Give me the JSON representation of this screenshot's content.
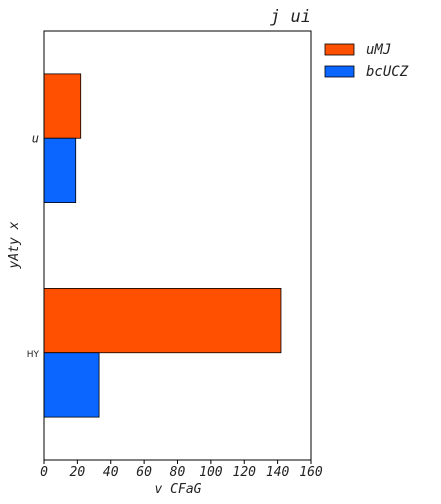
{
  "chart_data": {
    "type": "bar",
    "orientation": "horizontal",
    "title": "j  ui",
    "xlabel": "v  CFaG",
    "ylabel": "yAty x",
    "categories": [
      "u",
      "HY"
    ],
    "series": [
      {
        "name": "uMJ",
        "values": [
          22,
          142
        ],
        "color": "#ff4f00"
      },
      {
        "name": "bcUCZ",
        "values": [
          19,
          33
        ],
        "color": "#0a66ff"
      }
    ],
    "xlim": [
      0,
      160
    ],
    "xticks": [
      0,
      20,
      40,
      60,
      80,
      100,
      120,
      140,
      160
    ],
    "grid": false,
    "legend_position": "right"
  }
}
